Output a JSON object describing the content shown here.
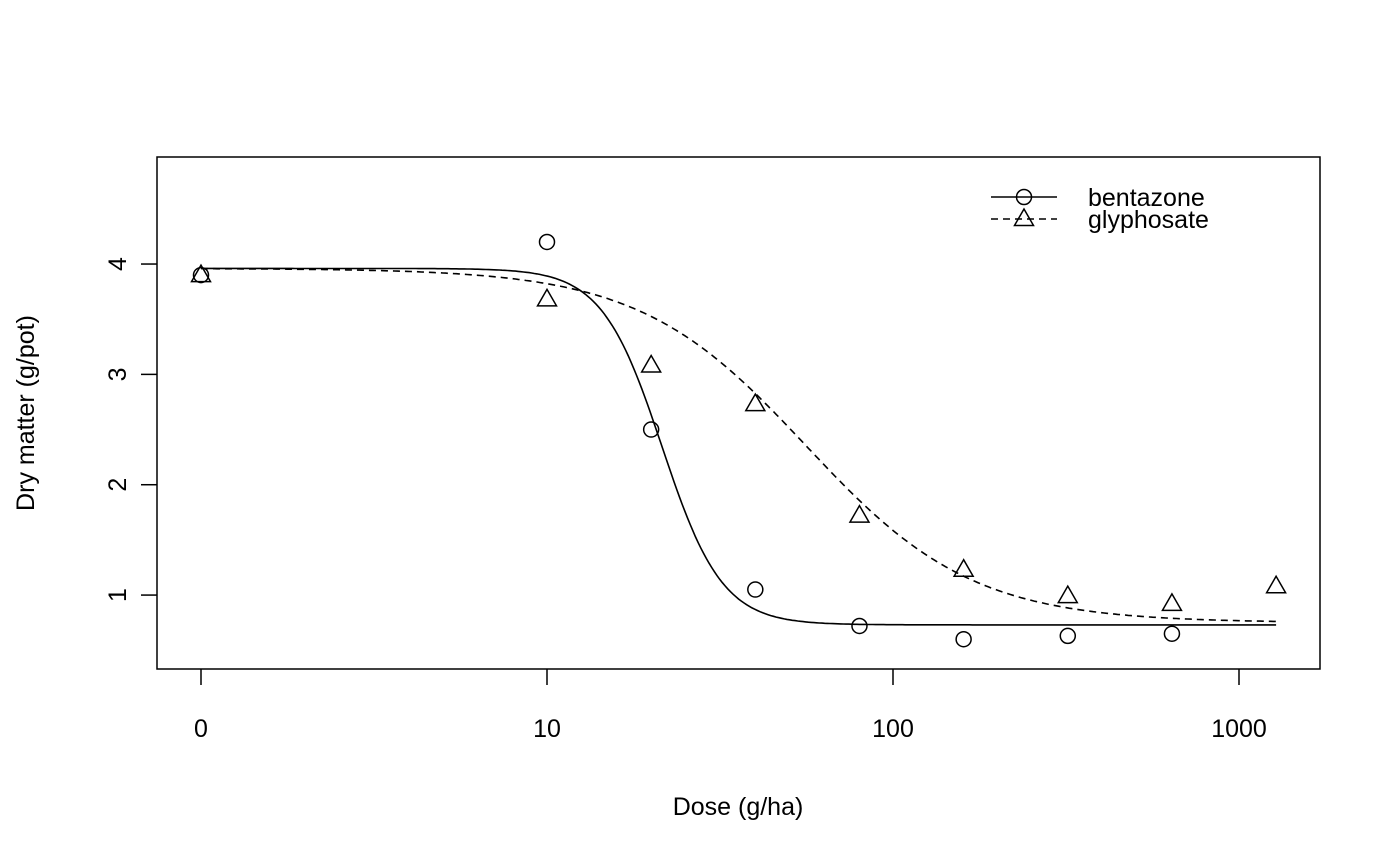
{
  "chart_data": {
    "type": "line",
    "title": "",
    "xlabel": "Dose (g/ha)",
    "ylabel": "Dry matter (g/pot)",
    "x_scale": "log",
    "x_ticks": [
      {
        "value": 0,
        "label": "0"
      },
      {
        "value": 10,
        "label": "10"
      },
      {
        "value": 100,
        "label": "100"
      },
      {
        "value": 1000,
        "label": "1000"
      }
    ],
    "y_ticks": [
      1,
      2,
      3,
      4
    ],
    "ylim": [
      0.33,
      4.97
    ],
    "grid": false,
    "legend_position": "top-right",
    "series": [
      {
        "name": "bentazone",
        "marker": "circle",
        "line_style": "solid",
        "points": [
          {
            "x": 0,
            "y": 3.9
          },
          {
            "x": 10,
            "y": 4.2
          },
          {
            "x": 20,
            "y": 2.5
          },
          {
            "x": 40,
            "y": 1.05
          },
          {
            "x": 80,
            "y": 0.72
          },
          {
            "x": 160,
            "y": 0.6
          },
          {
            "x": 320,
            "y": 0.63
          },
          {
            "x": 640,
            "y": 0.65
          }
        ],
        "fit": {
          "model": "log-logistic",
          "upper": 3.96,
          "lower": 0.73,
          "ed50": 21.5,
          "slope": 5.0
        }
      },
      {
        "name": "glyphosate",
        "marker": "triangle",
        "line_style": "dashed",
        "points": [
          {
            "x": 0,
            "y": 3.9
          },
          {
            "x": 10,
            "y": 3.68
          },
          {
            "x": 20,
            "y": 3.08
          },
          {
            "x": 40,
            "y": 2.73
          },
          {
            "x": 80,
            "y": 1.72
          },
          {
            "x": 160,
            "y": 1.23
          },
          {
            "x": 320,
            "y": 0.99
          },
          {
            "x": 640,
            "y": 0.92
          },
          {
            "x": 1280,
            "y": 1.08
          }
        ],
        "fit": {
          "model": "log-logistic",
          "upper": 3.96,
          "lower": 0.75,
          "ed50": 56,
          "slope": 1.8
        }
      }
    ]
  }
}
